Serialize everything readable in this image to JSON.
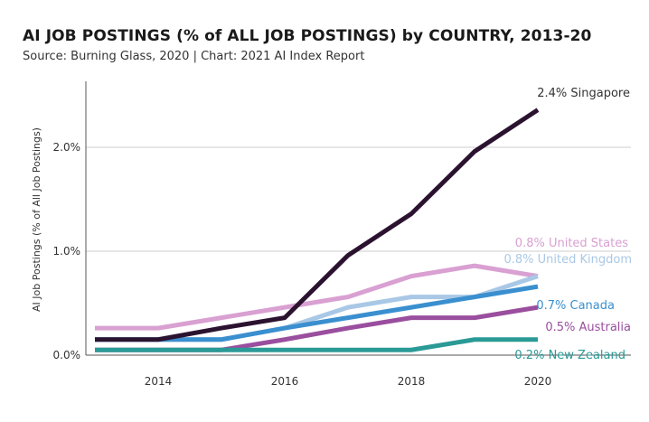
{
  "chart_data": {
    "type": "line",
    "title": "AI JOB POSTINGS (% of ALL JOB POSTINGS) by COUNTRY, 2013-20",
    "subtitle": "Source: Burning Glass, 2020 | Chart: 2021 AI Index Report",
    "xlabel": "",
    "ylabel": "AI Job Postings (% of  All Job Postings)",
    "x": [
      2013,
      2014,
      2015,
      2016,
      2017,
      2018,
      2019,
      2020
    ],
    "x_ticks": [
      "2014",
      "2016",
      "2018",
      "2020"
    ],
    "y_ticks": [
      "0.0%",
      "1.0%",
      "2.0%"
    ],
    "y_tick_values": [
      0,
      1,
      2
    ],
    "xlim": [
      2012.8,
      2021.3
    ],
    "ylim": [
      0,
      2.6
    ],
    "grid": "horizontal",
    "series": [
      {
        "name": "United States",
        "label": "0.8% United States",
        "color": "#d9a0d2",
        "values": [
          0.26,
          0.26,
          0.36,
          0.46,
          0.56,
          0.76,
          0.86,
          0.76
        ]
      },
      {
        "name": "United Kingdom",
        "label": "0.8% United Kingdom",
        "color": "#a9c8e6",
        "values": [
          0.15,
          0.15,
          0.15,
          0.26,
          0.46,
          0.56,
          0.56,
          0.76
        ]
      },
      {
        "name": "Canada",
        "label": "0.7% Canada",
        "color": "#3a8fcf",
        "values": [
          0.15,
          0.15,
          0.15,
          0.26,
          0.36,
          0.46,
          0.56,
          0.66
        ]
      },
      {
        "name": "Australia",
        "label": "0.5% Australia",
        "color": "#9a4e9e",
        "values": [
          0.05,
          0.05,
          0.05,
          0.15,
          0.26,
          0.36,
          0.36,
          0.46
        ]
      },
      {
        "name": "New Zealand",
        "label": "0.2% New Zealand",
        "color": "#2a9a96",
        "values": [
          0.05,
          0.05,
          0.05,
          0.05,
          0.05,
          0.05,
          0.15,
          0.15
        ]
      },
      {
        "name": "Singapore",
        "label": "2.4% Singapore",
        "color": "#2b1330",
        "values": [
          0.15,
          0.15,
          0.26,
          0.36,
          0.96,
          1.36,
          1.96,
          2.36
        ]
      }
    ]
  }
}
